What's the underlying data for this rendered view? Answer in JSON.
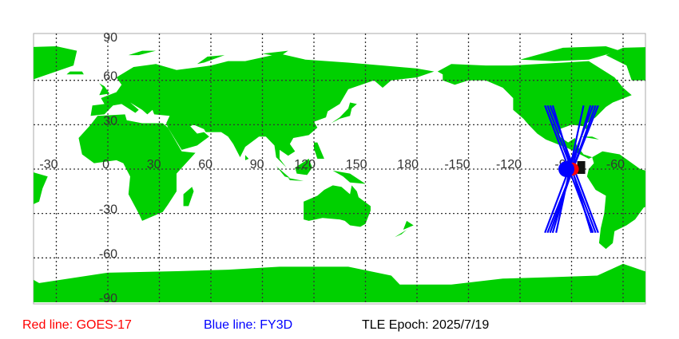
{
  "map": {
    "lon_labels": [
      "-30",
      "0",
      "30",
      "60",
      "90",
      "120",
      "150",
      "180",
      "-150",
      "-120",
      "-90",
      "-60"
    ],
    "lon_values": [
      -30,
      0,
      30,
      60,
      90,
      120,
      150,
      180,
      210,
      240,
      270,
      300
    ],
    "lat_labels": [
      "90",
      "60",
      "30",
      "-30",
      "-60",
      "-90"
    ],
    "lat_values": [
      90,
      60,
      30,
      -30,
      -60,
      -90
    ],
    "land_color": "#00d000",
    "grid_color": "#333333"
  },
  "satellites": {
    "goes17": {
      "color": "#ff0000",
      "lon": -89.5,
      "lat": 0
    },
    "fy3d": {
      "color": "#0000ff",
      "lon": -93,
      "lat": 0,
      "tracks": [
        [
          [
            -105.5,
            43
          ],
          [
            -77.5,
            -43
          ]
        ],
        [
          [
            -104,
            43
          ],
          [
            -76,
            -43
          ]
        ],
        [
          0
        ],
        [
          [
            -102.5,
            43
          ],
          [
            -74.5,
            -43
          ]
        ],
        [
          [
            -101,
            43
          ],
          [
            -78.5,
            -43
          ]
        ],
        [
          [
            -74.5,
            43
          ],
          [
            -104,
            -43
          ]
        ],
        [
          [
            -76,
            43
          ],
          [
            -102.5,
            -43
          ]
        ],
        [
          [
            -77.5,
            43
          ],
          [
            -105.5,
            -43
          ]
        ],
        [
          [
            -79,
            43
          ],
          [
            -101,
            -43
          ]
        ],
        [
          [
            -83,
            43
          ],
          [
            -99,
            -43
          ]
        ]
      ]
    }
  },
  "legend": {
    "red": "Red line: GOES-17",
    "blue": "Blue line: FY3D",
    "epoch": "TLE Epoch: 2025/7/19"
  }
}
